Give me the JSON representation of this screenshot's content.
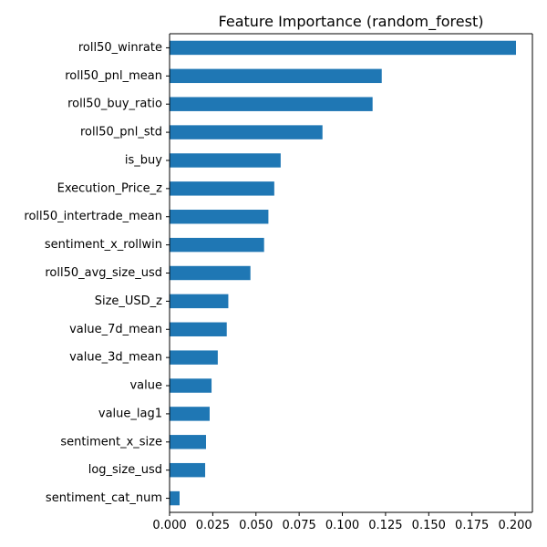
{
  "chart_data": {
    "type": "bar",
    "orientation": "horizontal",
    "title": "Feature Importance (random_forest)",
    "xlabel": "",
    "ylabel": "",
    "xlim": [
      0,
      0.21
    ],
    "xticks": [
      0.0,
      0.025,
      0.05,
      0.075,
      0.1,
      0.125,
      0.15,
      0.175,
      0.2
    ],
    "xtick_labels": [
      "0.000",
      "0.025",
      "0.050",
      "0.075",
      "0.100",
      "0.125",
      "0.150",
      "0.175",
      "0.200"
    ],
    "grid": false,
    "legend": "none",
    "bar_color": "#1f77b4",
    "categories": [
      "roll50_winrate",
      "roll50_pnl_mean",
      "roll50_buy_ratio",
      "roll50_pnl_std",
      "is_buy",
      "Execution_Price_z",
      "roll50_intertrade_mean",
      "sentiment_x_rollwin",
      "roll50_avg_size_usd",
      "Size_USD_z",
      "value_7d_mean",
      "value_3d_mean",
      "value",
      "value_lag1",
      "sentiment_x_size",
      "log_size_usd",
      "sentiment_cat_num"
    ],
    "values": [
      0.2005,
      0.1228,
      0.1175,
      0.0885,
      0.0643,
      0.0606,
      0.0572,
      0.0547,
      0.0468,
      0.034,
      0.0331,
      0.0279,
      0.0243,
      0.0232,
      0.0211,
      0.0206,
      0.0058
    ]
  }
}
